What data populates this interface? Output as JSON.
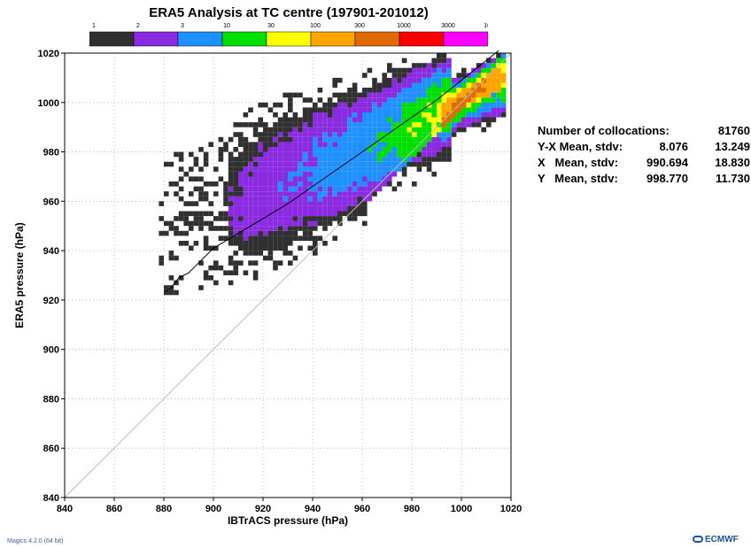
{
  "chart_data": {
    "type": "heatmap",
    "title": "ERA5 Analysis at TC centre (197901-201012)",
    "xlabel": "IBTrACS pressure (hPa)",
    "ylabel": "ERA5 pressure (hPa)",
    "xlim": [
      840,
      1020
    ],
    "ylim": [
      840,
      1020
    ],
    "x_ticks": [
      "840",
      "860",
      "880",
      "900",
      "920",
      "940",
      "960",
      "980",
      "1000",
      "1020"
    ],
    "y_ticks": [
      "840",
      "860",
      "880",
      "900",
      "920",
      "940",
      "960",
      "980",
      "1000",
      "1020"
    ],
    "grid": true,
    "colorbar": {
      "labels": [
        "1",
        "2",
        "3",
        "10",
        "30",
        "100",
        "300",
        "1000",
        "3000",
        "10000"
      ],
      "colors": [
        "#303030",
        "#8a2be2",
        "#1e90ff",
        "#00e000",
        "#ffff00",
        "#ffa500",
        "#e06a00",
        "#ff0000",
        "#ff00ff"
      ]
    },
    "series": [
      {
        "kind": "density",
        "color_scale": "colorbar"
      },
      {
        "kind": "mean-line",
        "color": "#000000",
        "points": [
          [
            880,
            923
          ],
          [
            883,
            925
          ],
          [
            886,
            929
          ],
          [
            890,
            931
          ],
          [
            893,
            934
          ],
          [
            896,
            937
          ],
          [
            900,
            941
          ],
          [
            905,
            944
          ],
          [
            910,
            947
          ],
          [
            920,
            953
          ],
          [
            930,
            959
          ],
          [
            940,
            966
          ],
          [
            950,
            973
          ],
          [
            960,
            980
          ],
          [
            970,
            987
          ],
          [
            980,
            994
          ],
          [
            990,
            1001
          ],
          [
            1000,
            1009
          ],
          [
            1010,
            1017
          ],
          [
            1015,
            1021
          ]
        ]
      },
      {
        "kind": "identity-line",
        "color": "#bbbbbb",
        "points": [
          [
            840,
            840
          ],
          [
            1020,
            1020
          ]
        ]
      }
    ]
  },
  "stats": {
    "rows": [
      {
        "label": "Number of collocations:",
        "v1": "",
        "v2": "81760"
      },
      {
        "label": "Y-X Mean, stdv:",
        "v1": "8.076",
        "v2": "13.249"
      },
      {
        "label": "X   Mean, stdv:",
        "v1": "990.694",
        "v2": "18.830"
      },
      {
        "label": "Y   Mean, stdv:",
        "v1": "998.770",
        "v2": "11.730"
      }
    ]
  },
  "footer": {
    "left": "Magics 4.2.0 (64 bit)",
    "right": "ECMWF"
  }
}
